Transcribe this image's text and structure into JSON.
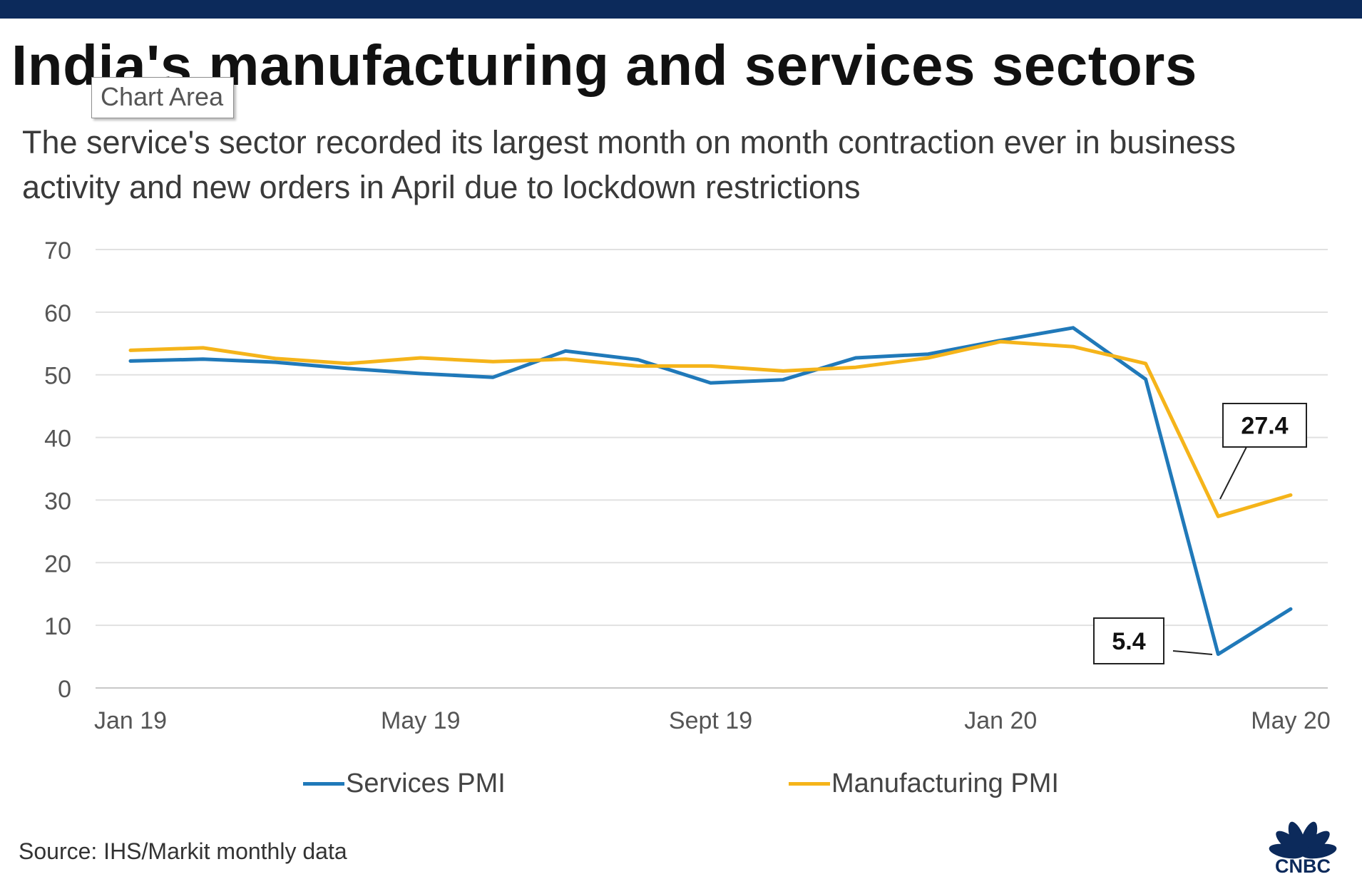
{
  "header": {
    "title": "India's manufacturing and services sectors",
    "subtitle": "The service's sector recorded its largest month on month contraction ever in business activity and new orders in April due to lockdown restrictions"
  },
  "tooltip": {
    "text": "Chart Area"
  },
  "chart_data": {
    "type": "line",
    "title": "India's manufacturing and services sectors",
    "xlabel": "",
    "ylabel": "",
    "ylim": [
      0,
      70
    ],
    "yticks": [
      0,
      10,
      20,
      30,
      40,
      50,
      60,
      70
    ],
    "grid": true,
    "categories": [
      "Jan 19",
      "Feb 19",
      "Mar 19",
      "Apr 19",
      "May 19",
      "Jun 19",
      "Jul 19",
      "Aug 19",
      "Sept 19",
      "Oct 19",
      "Nov 19",
      "Dec 19",
      "Jan 20",
      "Feb 20",
      "Mar 20",
      "Apr 20",
      "May 20"
    ],
    "x_tick_labels": [
      {
        "index": 0,
        "label": "Jan 19"
      },
      {
        "index": 4,
        "label": "May 19"
      },
      {
        "index": 8,
        "label": "Sept 19"
      },
      {
        "index": 12,
        "label": "Jan 20"
      },
      {
        "index": 16,
        "label": "May 20"
      }
    ],
    "series": [
      {
        "name": "Services PMI",
        "color": "#2079b9",
        "values": [
          52.2,
          52.5,
          52.0,
          51.0,
          50.2,
          49.6,
          53.8,
          52.4,
          48.7,
          49.2,
          52.7,
          53.3,
          55.5,
          57.5,
          49.3,
          5.4,
          12.6
        ]
      },
      {
        "name": "Manufacturing PMI",
        "color": "#f5b41a",
        "values": [
          53.9,
          54.3,
          52.6,
          51.8,
          52.7,
          52.1,
          52.5,
          51.4,
          51.4,
          50.6,
          51.2,
          52.7,
          55.3,
          54.5,
          51.8,
          27.4,
          30.8
        ]
      }
    ],
    "annotations": [
      {
        "series": "Manufacturing PMI",
        "index": 15,
        "text": "27.4"
      },
      {
        "series": "Services PMI",
        "index": 15,
        "text": "5.4"
      }
    ],
    "legend_position": "bottom"
  },
  "legend": {
    "services_label": "Services PMI",
    "manufacturing_label": "Manufacturing PMI",
    "services_color": "#2079b9",
    "manufacturing_color": "#f5b41a"
  },
  "footer": {
    "source": "Source: IHS/Markit monthly data"
  },
  "brand": {
    "logo_text": "CNBC",
    "logo_color": "#0c2a5b"
  }
}
